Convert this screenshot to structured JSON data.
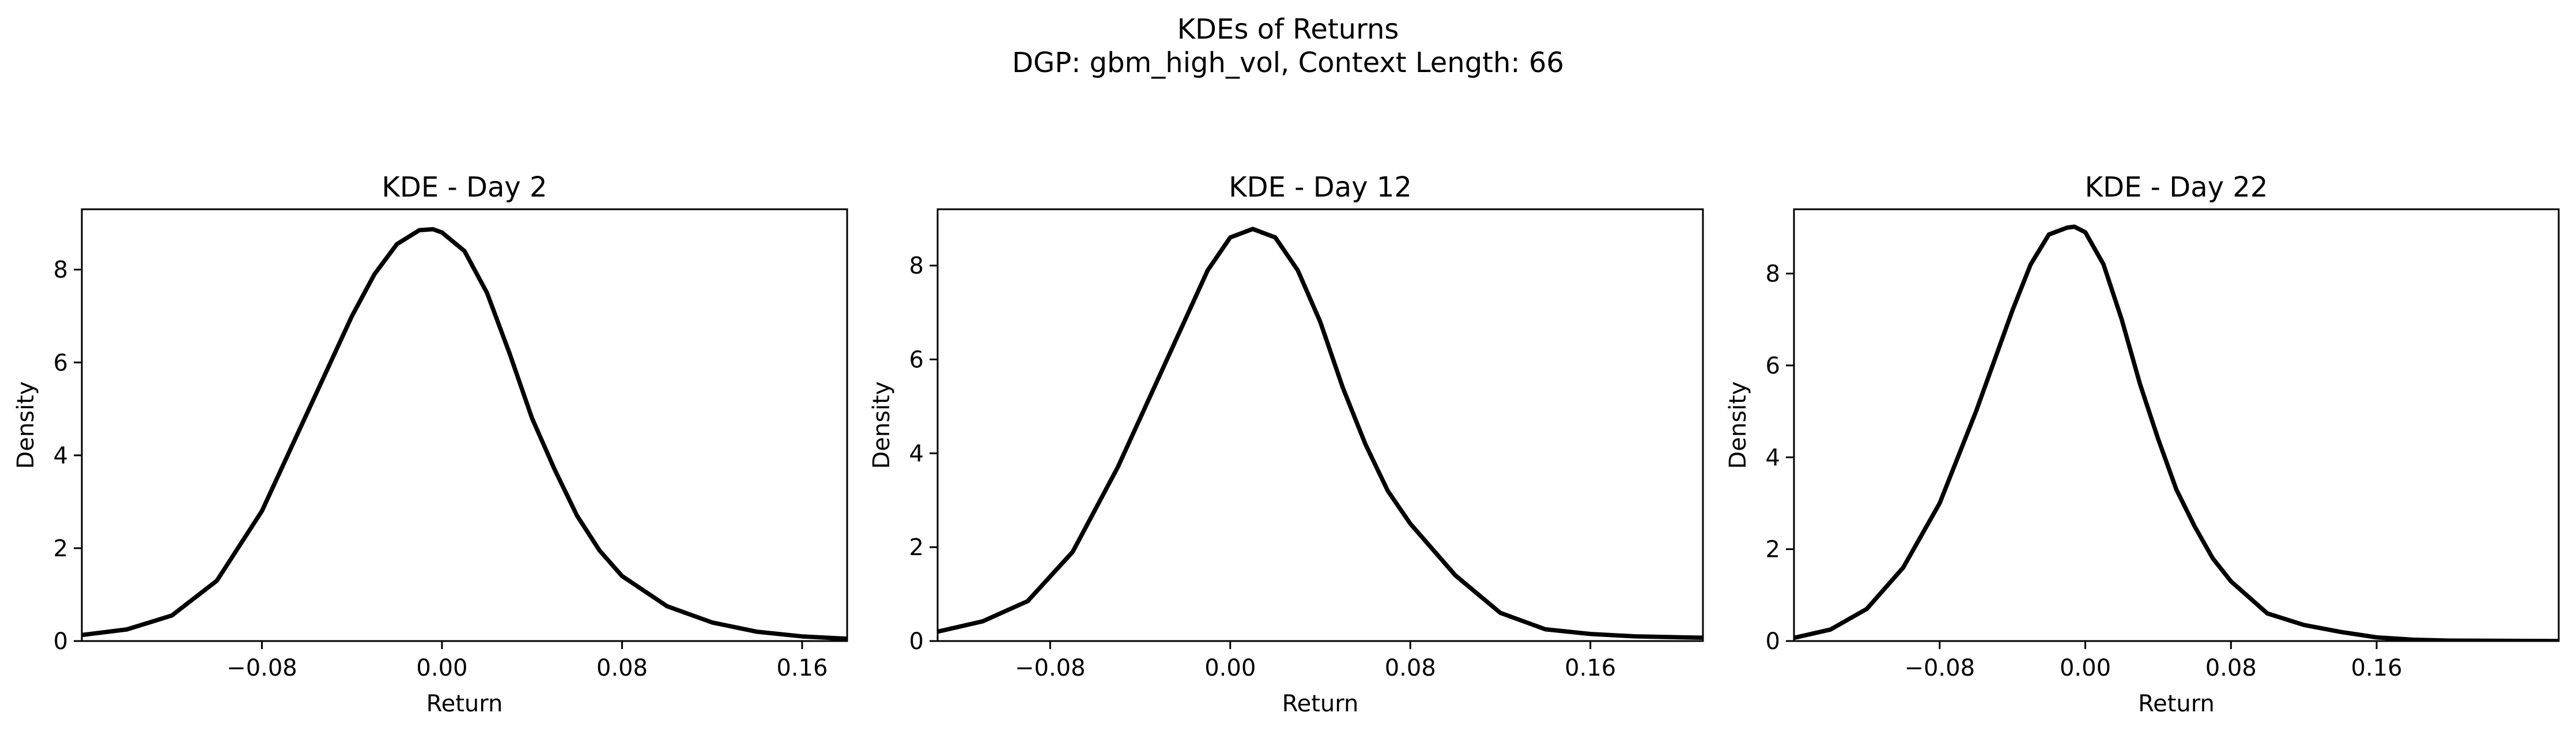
{
  "figure": {
    "title": "KDEs of Returns",
    "subtitle": "DGP: gbm_high_vol, Context Length: 66"
  },
  "chart_data": [
    {
      "type": "line",
      "title": "KDE - Day 2",
      "xlabel": "Return",
      "ylabel": "Density",
      "xlim": [
        -0.16,
        0.18
      ],
      "ylim": [
        0,
        9.3
      ],
      "xticks": [
        -0.08,
        0.0,
        0.08,
        0.16
      ],
      "xtick_labels": [
        "−0.08",
        "0.00",
        "0.08",
        "0.16"
      ],
      "yticks": [
        0,
        2,
        4,
        6,
        8
      ],
      "ytick_labels": [
        "0",
        "2",
        "4",
        "6",
        "8"
      ],
      "grid": false,
      "color": "#000000",
      "series": [
        {
          "x": [
            -0.16,
            -0.14,
            -0.12,
            -0.1,
            -0.08,
            -0.06,
            -0.04,
            -0.03,
            -0.02,
            -0.01,
            -0.004,
            0.0,
            0.01,
            0.02,
            0.03,
            0.04,
            0.05,
            0.06,
            0.07,
            0.08,
            0.1,
            0.12,
            0.14,
            0.16,
            0.18
          ],
          "y": [
            0.13,
            0.25,
            0.55,
            1.3,
            2.8,
            4.9,
            7.0,
            7.9,
            8.55,
            8.85,
            8.87,
            8.8,
            8.4,
            7.5,
            6.2,
            4.8,
            3.7,
            2.7,
            1.95,
            1.4,
            0.75,
            0.4,
            0.2,
            0.1,
            0.05
          ]
        }
      ]
    },
    {
      "type": "line",
      "title": "KDE - Day 12",
      "xlabel": "Return",
      "ylabel": "Density",
      "xlim": [
        -0.13,
        0.21
      ],
      "ylim": [
        0,
        9.2
      ],
      "xticks": [
        -0.08,
        0.0,
        0.08,
        0.16
      ],
      "xtick_labels": [
        "−0.08",
        "0.00",
        "0.08",
        "0.16"
      ],
      "yticks": [
        0,
        2,
        4,
        6,
        8
      ],
      "ytick_labels": [
        "0",
        "2",
        "4",
        "6",
        "8"
      ],
      "grid": false,
      "color": "#000000",
      "series": [
        {
          "x": [
            -0.13,
            -0.11,
            -0.09,
            -0.07,
            -0.05,
            -0.03,
            -0.01,
            0.0,
            0.01,
            0.02,
            0.03,
            0.04,
            0.05,
            0.06,
            0.07,
            0.08,
            0.1,
            0.12,
            0.14,
            0.16,
            0.18,
            0.21
          ],
          "y": [
            0.2,
            0.42,
            0.85,
            1.9,
            3.7,
            5.8,
            7.9,
            8.6,
            8.78,
            8.6,
            7.9,
            6.8,
            5.4,
            4.2,
            3.2,
            2.5,
            1.4,
            0.6,
            0.25,
            0.15,
            0.1,
            0.07
          ]
        }
      ]
    },
    {
      "type": "line",
      "title": "KDE - Day 22",
      "xlabel": "Return",
      "ylabel": "Density",
      "xlim": [
        -0.16,
        0.26
      ],
      "ylim": [
        0,
        9.4
      ],
      "xticks": [
        -0.08,
        0.0,
        0.08,
        0.16
      ],
      "xtick_labels": [
        "−0.08",
        "0.00",
        "0.08",
        "0.16"
      ],
      "yticks": [
        0,
        2,
        4,
        6,
        8
      ],
      "ytick_labels": [
        "0",
        "2",
        "4",
        "6",
        "8"
      ],
      "grid": false,
      "color": "#000000",
      "series": [
        {
          "x": [
            -0.16,
            -0.14,
            -0.12,
            -0.1,
            -0.08,
            -0.06,
            -0.04,
            -0.03,
            -0.02,
            -0.01,
            -0.006,
            0.0,
            0.01,
            0.02,
            0.03,
            0.04,
            0.05,
            0.06,
            0.07,
            0.08,
            0.1,
            0.12,
            0.14,
            0.16,
            0.18,
            0.2,
            0.26
          ],
          "y": [
            0.07,
            0.25,
            0.7,
            1.6,
            3.0,
            5.0,
            7.2,
            8.2,
            8.85,
            9.0,
            9.02,
            8.9,
            8.2,
            7.0,
            5.6,
            4.4,
            3.3,
            2.5,
            1.8,
            1.3,
            0.6,
            0.35,
            0.2,
            0.08,
            0.03,
            0.01,
            0.0
          ]
        }
      ]
    }
  ]
}
